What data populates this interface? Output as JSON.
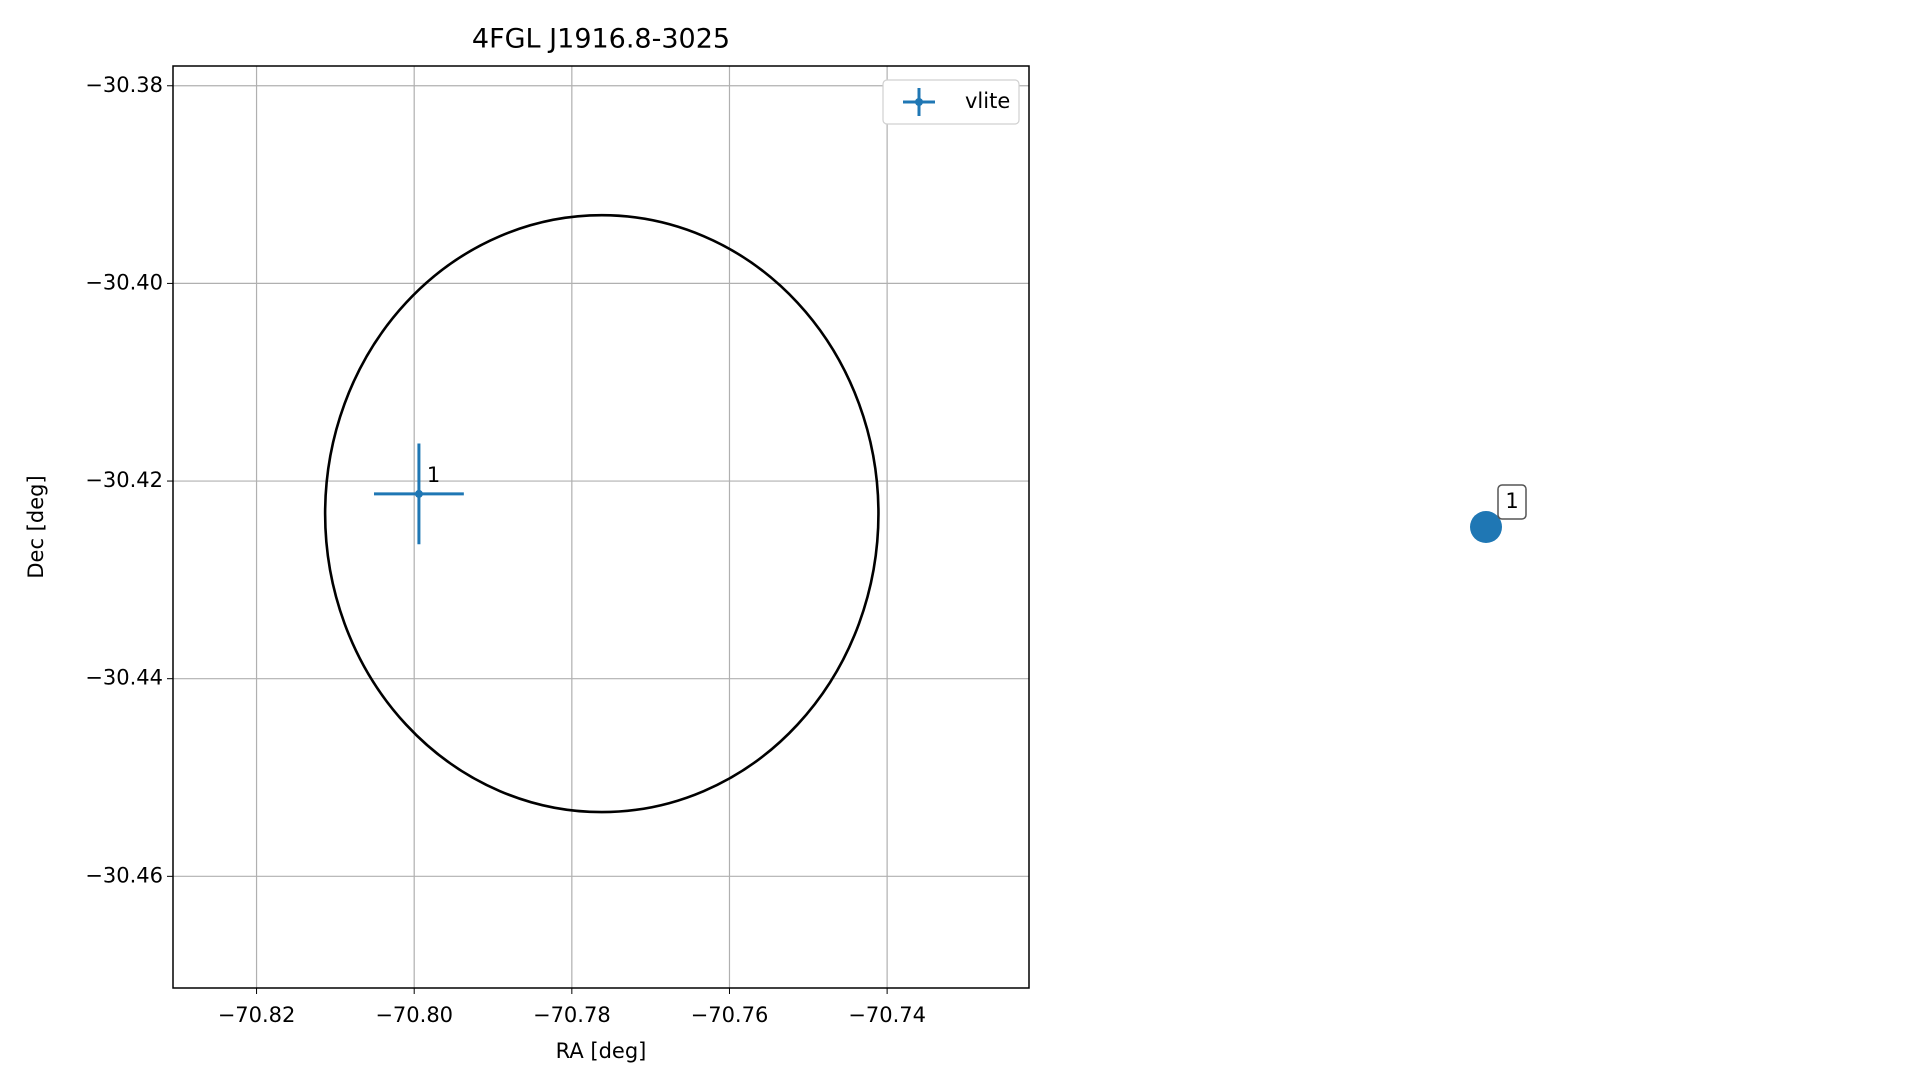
{
  "chart_data": {
    "type": "scatter",
    "title": "4FGL J1916.8-3025",
    "x_label": "RA [deg]",
    "y_label": "Dec [deg]",
    "xlim": [
      -70.8306,
      -70.722
    ],
    "ylim": [
      -30.4713,
      -30.378
    ],
    "xticks": [
      {
        "value": -70.82,
        "label": "−70.82"
      },
      {
        "value": -70.8,
        "label": "−70.80"
      },
      {
        "value": -70.78,
        "label": "−70.78"
      },
      {
        "value": -70.76,
        "label": "−70.76"
      },
      {
        "value": -70.74,
        "label": "−70.74"
      }
    ],
    "yticks": [
      {
        "value": -30.38,
        "label": "−30.38"
      },
      {
        "value": -30.4,
        "label": "−30.40"
      },
      {
        "value": -30.42,
        "label": "−30.42"
      },
      {
        "value": -30.44,
        "label": "−30.44"
      },
      {
        "value": -30.46,
        "label": "−30.46"
      }
    ],
    "grid": true,
    "legend": "upper right",
    "series": [
      {
        "name": "vlite",
        "color": "#1f77b4",
        "x": [
          -70.7994
        ],
        "y": [
          -30.4213
        ],
        "xerr": [
          0.0057
        ],
        "yerr": [
          0.0051
        ],
        "labels": [
          "1"
        ]
      }
    ],
    "ellipse": {
      "center": [
        -70.7762,
        -30.4233
      ],
      "width": 0.0702,
      "height": 0.0604,
      "color": "#000000"
    }
  },
  "marker_panel": {
    "labels": [
      "1"
    ],
    "color": "#1f77b4"
  }
}
